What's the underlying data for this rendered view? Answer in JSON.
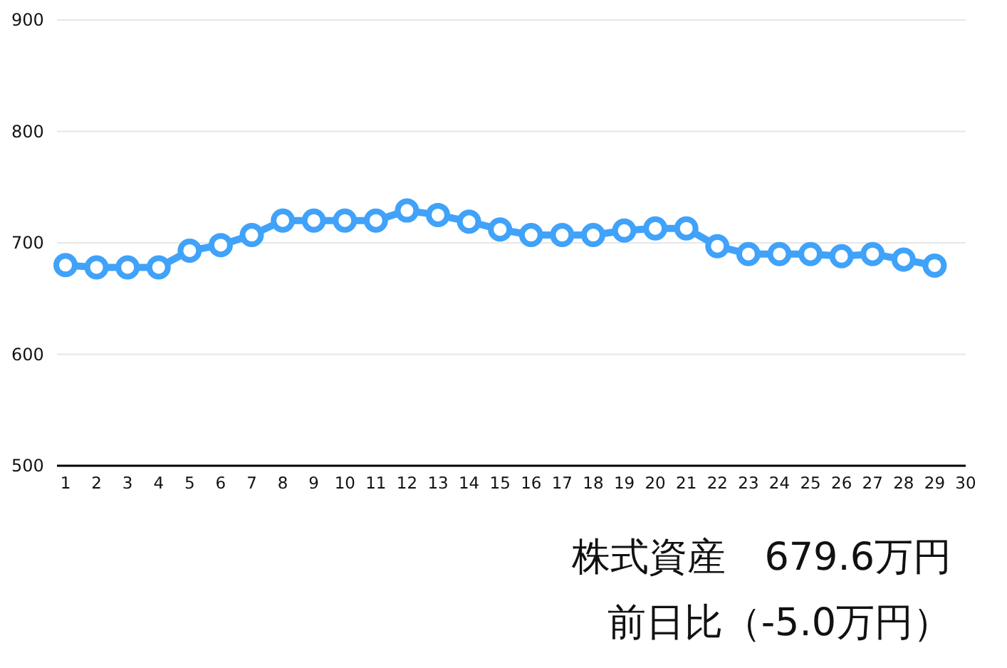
{
  "chart_data": {
    "type": "line",
    "x": [
      1,
      2,
      3,
      4,
      5,
      6,
      7,
      8,
      9,
      10,
      11,
      12,
      13,
      14,
      15,
      16,
      17,
      18,
      19,
      20,
      21,
      22,
      23,
      24,
      25,
      26,
      27,
      28,
      29
    ],
    "values": [
      680,
      678,
      678,
      678,
      693,
      698,
      707,
      720,
      720,
      720,
      720,
      729,
      725,
      719,
      712,
      707,
      707,
      707,
      711,
      713,
      713,
      697,
      690,
      690,
      690,
      688,
      690,
      685,
      679.6
    ],
    "color": "#40a2f9",
    "marker": "circle",
    "grid": "y",
    "xlim": [
      1,
      30
    ],
    "xticks": [
      1,
      2,
      3,
      4,
      5,
      6,
      7,
      8,
      9,
      10,
      11,
      12,
      13,
      14,
      15,
      16,
      17,
      18,
      19,
      20,
      21,
      22,
      23,
      24,
      25,
      26,
      27,
      28,
      29,
      30
    ],
    "ylim": [
      500,
      900
    ],
    "yticks": [
      500,
      600,
      700,
      800,
      900
    ],
    "annotations": [
      "株式資産　679.6万円",
      "前日比（-5.0万円）"
    ]
  }
}
